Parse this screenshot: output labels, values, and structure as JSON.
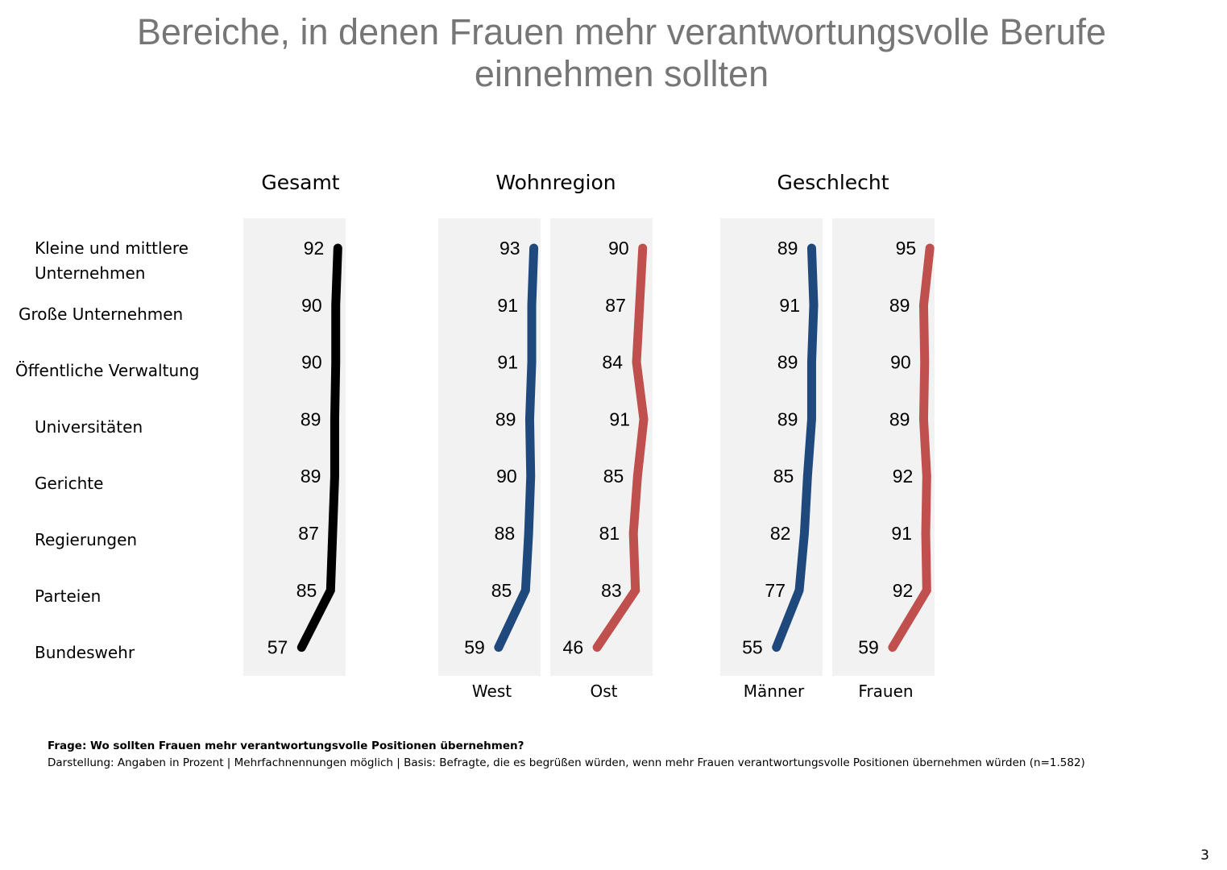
{
  "title_line1": "Bereiche, in denen Frauen mehr verantwortungsvolle Berufe",
  "title_line2": "einnehmen sollten",
  "groups": [
    {
      "title": "Gesamt"
    },
    {
      "title": "Wohnregion"
    },
    {
      "title": "Geschlecht"
    }
  ],
  "footnote": {
    "question": "Frage: Wo sollten Frauen mehr verantwortungsvolle Positionen übernehmen?",
    "basis": "Darstellung: Angaben in Prozent | Mehrfachnennungen möglich | Basis: Befragte, die es begrüßen würden, wenn mehr Frauen verantwortungsvolle Positionen übernehmen würden (n=1.582)"
  },
  "page_number": "3",
  "colors": {
    "gesamt": "#000000",
    "blue": "#1f497d",
    "red": "#c0504d",
    "panel_bg": "#f2f2f2",
    "title": "#767676"
  },
  "chart_data": {
    "type": "line",
    "title": "Bereiche, in denen Frauen mehr verantwortungsvolle Berufe einnehmen sollten",
    "orientation": "vertical-category-axis",
    "categories": [
      "Kleine und mittlere Unternehmen",
      "Große Unternehmen",
      "Öffentliche Verwaltung",
      "Universitäten",
      "Gerichte",
      "Regierungen",
      "Parteien",
      "Bundeswehr"
    ],
    "value_unit": "Prozent",
    "xlim": [
      0,
      100
    ],
    "grid": false,
    "series": [
      {
        "name": "Gesamt",
        "group": "Gesamt",
        "panel_label": "",
        "color": "#000000",
        "values": [
          92,
          90,
          90,
          89,
          89,
          87,
          85,
          57
        ]
      },
      {
        "name": "West",
        "group": "Wohnregion",
        "panel_label": "West",
        "color": "#1f497d",
        "values": [
          93,
          91,
          91,
          89,
          90,
          88,
          85,
          59
        ]
      },
      {
        "name": "Ost",
        "group": "Wohnregion",
        "panel_label": "Ost",
        "color": "#c0504d",
        "values": [
          90,
          87,
          84,
          91,
          85,
          81,
          83,
          46
        ]
      },
      {
        "name": "Männer",
        "group": "Geschlecht",
        "panel_label": "Männer",
        "color": "#1f497d",
        "values": [
          89,
          91,
          89,
          89,
          85,
          82,
          77,
          55
        ]
      },
      {
        "name": "Frauen",
        "group": "Geschlecht",
        "panel_label": "Frauen",
        "color": "#c0504d",
        "values": [
          95,
          89,
          90,
          89,
          92,
          91,
          92,
          59
        ]
      }
    ]
  }
}
